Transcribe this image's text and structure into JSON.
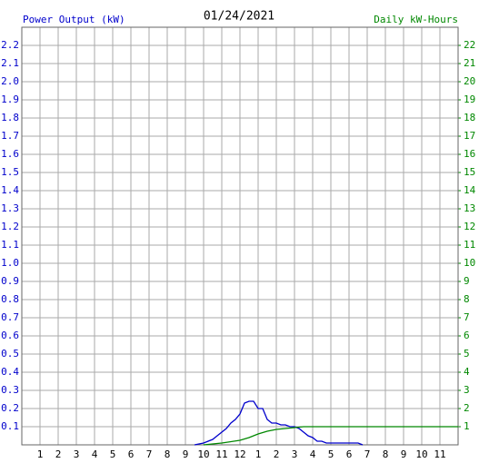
{
  "chart_data": {
    "type": "line",
    "title": "01/24/2021",
    "y_label": "Power Output (kW)",
    "y2_label": "Daily kW-Hours",
    "xlim": [
      0,
      24
    ],
    "xticks": [
      1,
      2,
      3,
      4,
      5,
      6,
      7,
      8,
      9,
      10,
      11,
      12,
      {
        "value": 13,
        "label": "1"
      },
      {
        "value": 14,
        "label": "2"
      },
      {
        "value": 15,
        "label": "3"
      },
      {
        "value": 16,
        "label": "4"
      },
      {
        "value": 17,
        "label": "5"
      },
      {
        "value": 18,
        "label": "6"
      },
      {
        "value": 19,
        "label": "7"
      },
      {
        "value": 20,
        "label": "8"
      },
      {
        "value": 21,
        "label": "9"
      },
      {
        "value": 22,
        "label": "10"
      },
      {
        "value": 23,
        "label": "11"
      }
    ],
    "ylim": [
      0,
      2.3
    ],
    "yticks": [
      0.1,
      0.2,
      0.3,
      0.4,
      0.5,
      0.6,
      0.7,
      0.8,
      0.9,
      {
        "value": 1.0,
        "label": "1.0"
      },
      1.1,
      1.2,
      1.3,
      1.4,
      1.5,
      1.6,
      1.7,
      1.8,
      1.9,
      {
        "value": 2.0,
        "label": "2.0"
      },
      2.1,
      2.2
    ],
    "y2lim": [
      0,
      23
    ],
    "y2ticks": [
      1,
      2,
      3,
      4,
      5,
      6,
      7,
      8,
      9,
      10,
      11,
      12,
      13,
      14,
      15,
      16,
      17,
      18,
      19,
      20,
      21,
      22
    ],
    "grid": true,
    "series": [
      {
        "color": "#0000cc",
        "x": [
          9.5,
          9.75,
          10,
          10.25,
          10.5,
          10.75,
          11,
          11.25,
          11.5,
          11.75,
          12,
          12.25,
          12.5,
          12.75,
          13,
          13.25,
          13.5,
          13.75,
          14,
          14.25,
          14.5,
          14.75,
          15,
          15.25,
          15.5,
          15.75,
          16,
          16.25,
          16.5,
          16.75,
          17,
          17.5,
          18,
          18.5,
          18.75
        ],
        "values": [
          0,
          0.005,
          0.01,
          0.02,
          0.03,
          0.05,
          0.07,
          0.09,
          0.12,
          0.14,
          0.17,
          0.23,
          0.24,
          0.24,
          0.2,
          0.2,
          0.14,
          0.12,
          0.12,
          0.11,
          0.11,
          0.1,
          0.1,
          0.09,
          0.07,
          0.05,
          0.04,
          0.02,
          0.02,
          0.01,
          0.01,
          0.01,
          0.01,
          0.01,
          0
        ]
      },
      {
        "color": "#008800",
        "axis": "y2",
        "x": [
          10,
          11,
          12,
          12.5,
          13,
          13.5,
          14,
          14.5,
          15,
          15.5,
          16,
          24
        ],
        "values": [
          0,
          0.1,
          0.25,
          0.4,
          0.6,
          0.75,
          0.85,
          0.9,
          0.95,
          1.0,
          1.0,
          1.0
        ]
      }
    ]
  }
}
